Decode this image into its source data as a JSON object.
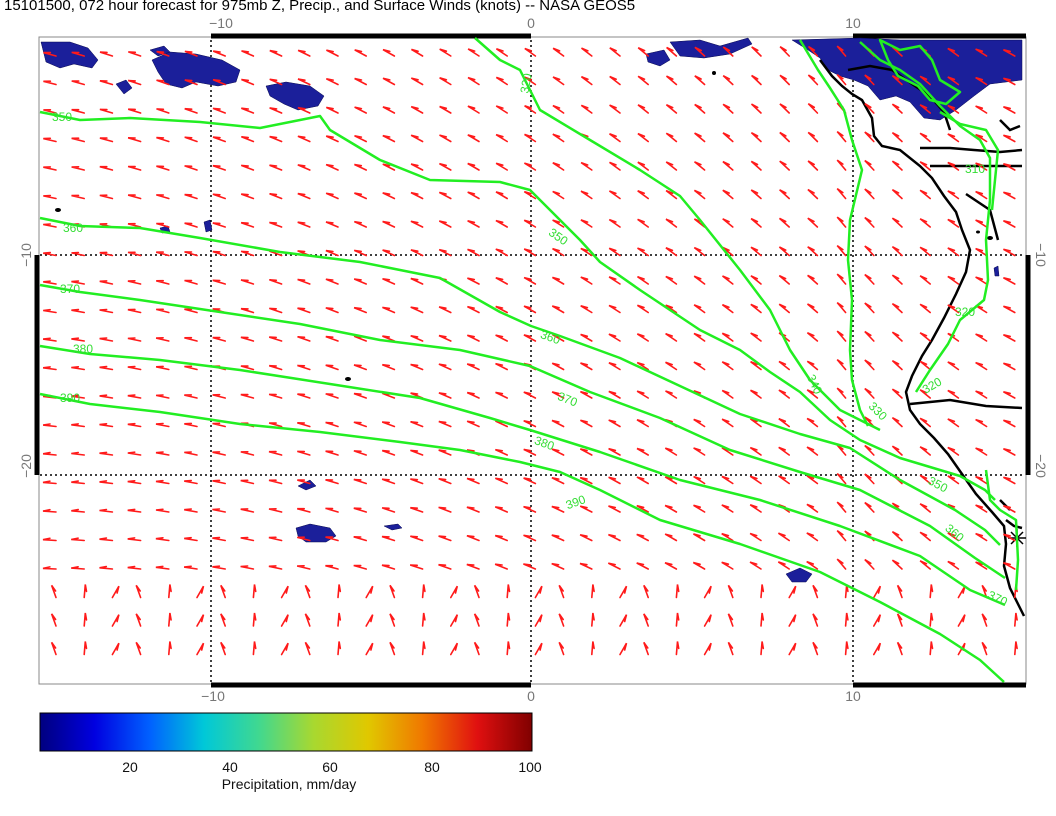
{
  "title": "15101500, 072 hour forecast for 975mb Z, Precip., and Surface Winds (knots) -- NASA GEOS5",
  "axes": {
    "top_labels": [
      "−10",
      "0",
      "10"
    ],
    "bottom_labels": [
      "−10",
      "0",
      "10"
    ],
    "left_labels": [
      "−10",
      "−20"
    ],
    "right_labels": [
      "−10",
      "−20"
    ]
  },
  "contours": {
    "color": "#22ee22",
    "levels": [
      {
        "value": 310,
        "label": "310"
      },
      {
        "value": 320,
        "label": "320"
      },
      {
        "value": 330,
        "label": "330"
      },
      {
        "value": 340,
        "label": "340"
      },
      {
        "value": 350,
        "label": "350"
      },
      {
        "value": 360,
        "label": "360"
      },
      {
        "value": 370,
        "label": "370"
      },
      {
        "value": 380,
        "label": "380"
      },
      {
        "value": 390,
        "label": "390"
      }
    ]
  },
  "precipitation": {
    "color": "#1b1f9a",
    "units": "mm/day"
  },
  "wind_barbs": {
    "color": "#ff1a1a",
    "units": "knots",
    "direction": "southerly / south-easterly trades"
  },
  "colorbar": {
    "title": "Precipitation, mm/day",
    "ticks": [
      "20",
      "40",
      "60",
      "80",
      "100"
    ],
    "colors": [
      "#00007f",
      "#0000e0",
      "#0060ff",
      "#00c8d8",
      "#40d890",
      "#a8d830",
      "#e0c800",
      "#f07800",
      "#e01010",
      "#800000"
    ]
  }
}
